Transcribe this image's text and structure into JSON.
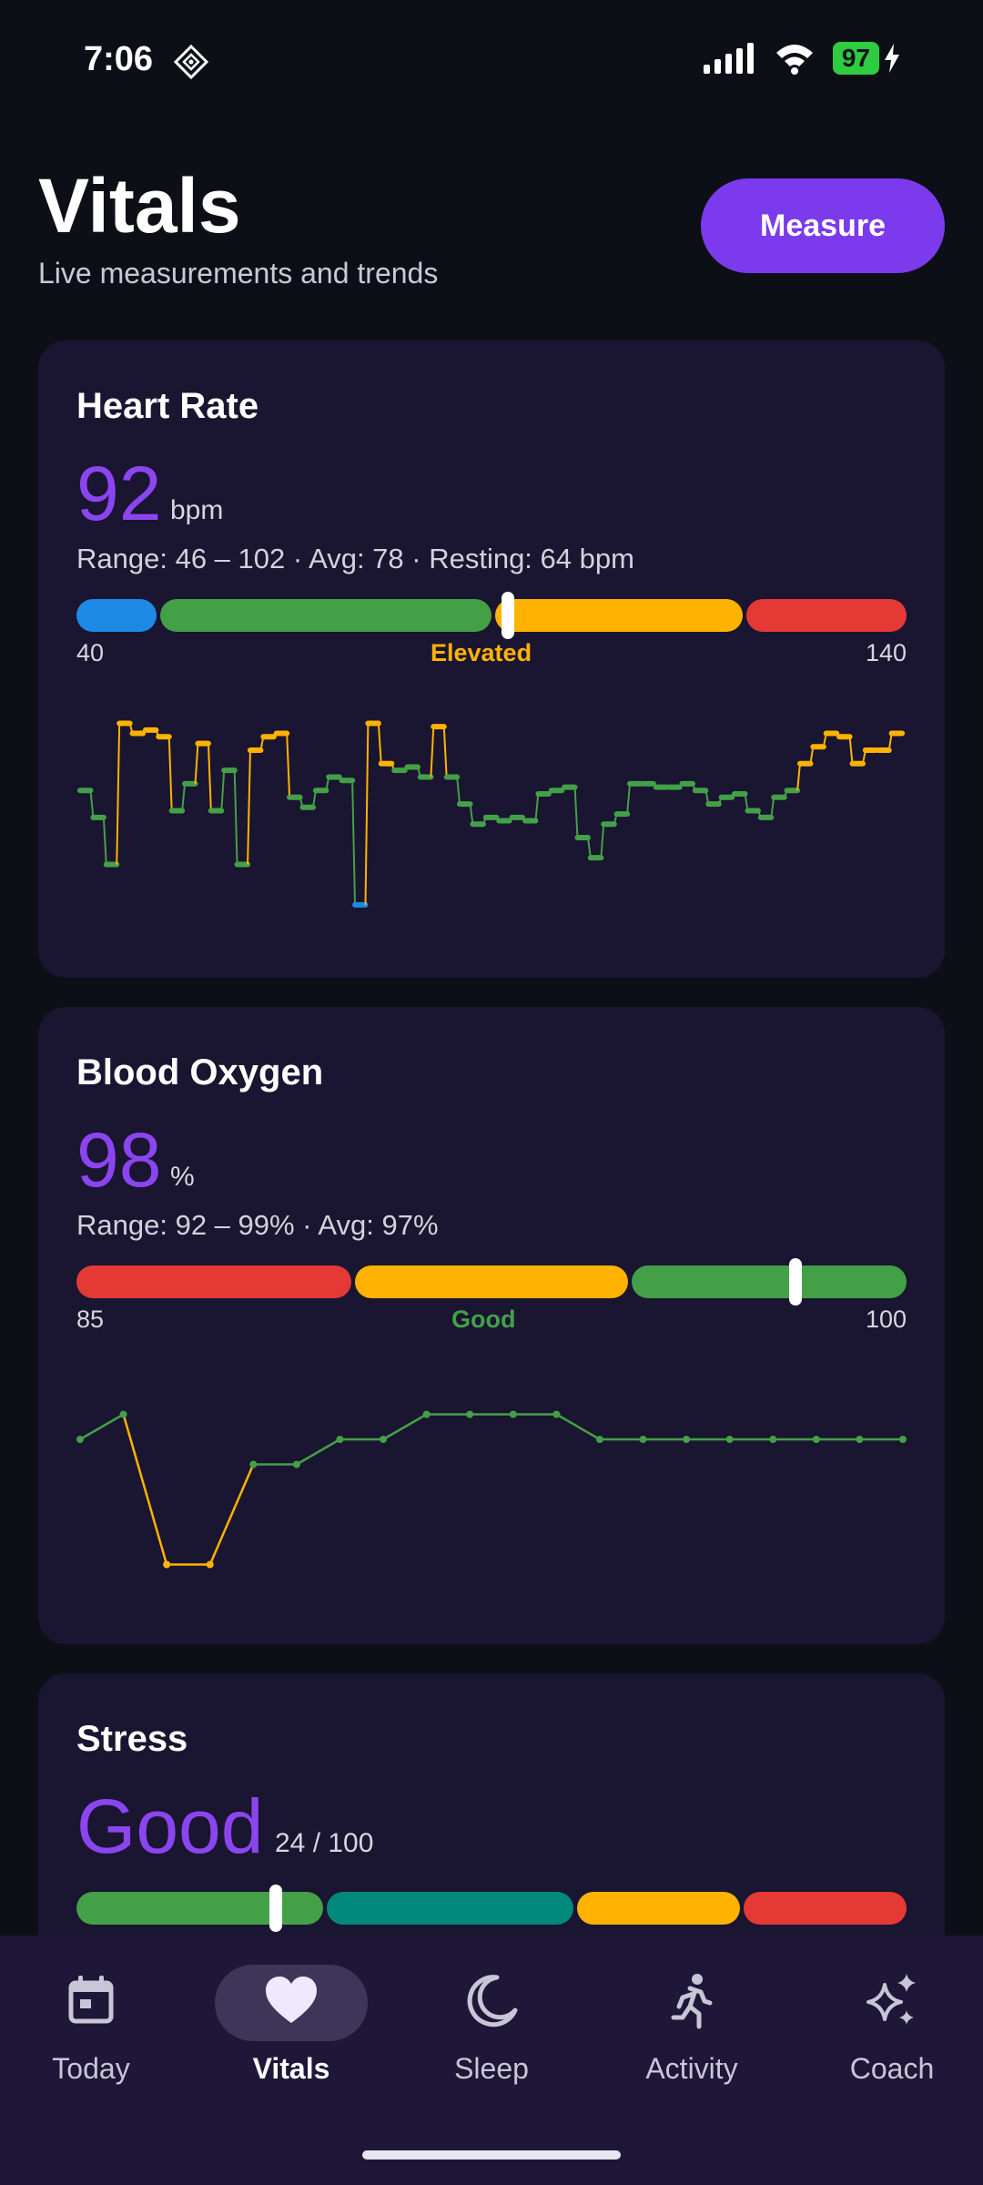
{
  "status": {
    "time": "7:06",
    "battery": "97"
  },
  "header": {
    "title": "Vitals",
    "subtitle": "Live measurements and trends",
    "measure_label": "Measure"
  },
  "heart_rate": {
    "title": "Heart Rate",
    "value": "92",
    "unit": "bpm",
    "range_text": "Range: 46 – 102 · Avg: 78 · Resting: 64 bpm",
    "gauge_min": "40",
    "gauge_max": "140",
    "status": "Elevated",
    "status_color": "#ffb300",
    "level": 92
  },
  "blood_oxygen": {
    "title": "Blood Oxygen",
    "value": "98",
    "unit": "%",
    "range_text": "Range: 92 – 99% · Avg: 97%",
    "gauge_min": "85",
    "gauge_max": "100",
    "status": "Good",
    "status_color": "#43a047",
    "level": 98
  },
  "stress": {
    "title": "Stress",
    "value": "Good",
    "score": "24 / 100",
    "level": 24
  },
  "colors": {
    "blue": "#1e88e5",
    "green": "#43a047",
    "amber": "#ffb300",
    "red": "#e53935",
    "teal": "#00897b",
    "accent": "#7c3aed"
  },
  "chart_data": [
    {
      "type": "line",
      "series": [
        {
          "values": [
            80,
            72,
            58,
            100,
            97,
            98,
            96,
            74,
            82,
            94,
            74,
            86,
            58,
            92,
            96,
            97,
            78,
            75,
            80,
            84,
            83,
            46,
            100,
            88,
            86,
            87,
            84,
            99,
            84,
            76,
            70,
            72,
            71,
            72,
            71,
            79,
            80,
            81,
            66,
            60,
            70,
            73,
            82,
            82,
            81,
            81,
            82,
            80,
            76,
            78,
            79,
            74,
            72,
            78,
            80,
            88,
            93,
            97,
            96,
            88,
            92,
            92,
            97
          ]
        }
      ]
    },
    {
      "type": "line",
      "series": [
        {
          "values": [
            97,
            98,
            92,
            92,
            96,
            96,
            97,
            97,
            98,
            98,
            98,
            98,
            97,
            97,
            97,
            97,
            97,
            97,
            97,
            97
          ]
        }
      ]
    }
  ],
  "nav": {
    "items": [
      {
        "label": "Today",
        "icon": "calendar-icon"
      },
      {
        "label": "Vitals",
        "icon": "heart-icon"
      },
      {
        "label": "Sleep",
        "icon": "moon-icon"
      },
      {
        "label": "Activity",
        "icon": "running-icon"
      },
      {
        "label": "Coach",
        "icon": "sparkle-icon"
      }
    ]
  }
}
